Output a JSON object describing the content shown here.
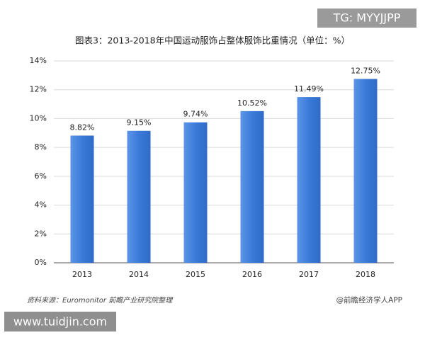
{
  "chart_data": {
    "type": "bar",
    "title": "图表3：2013-2018年中国运动服饰占整体服饰比重情况（单位：%）",
    "categories": [
      "2013",
      "2014",
      "2015",
      "2016",
      "2017",
      "2018"
    ],
    "values": [
      8.82,
      9.15,
      9.74,
      10.52,
      11.49,
      12.75
    ],
    "value_labels": [
      "8.82%",
      "9.15%",
      "9.74%",
      "10.52%",
      "11.49%",
      "12.75%"
    ],
    "color": "#3a7ad8",
    "ylim": [
      0,
      14
    ],
    "yticks": [
      {
        "value": 0,
        "label": "0%"
      },
      {
        "value": 2,
        "label": "2%"
      },
      {
        "value": 4,
        "label": "4%"
      },
      {
        "value": 6,
        "label": "6%"
      },
      {
        "value": 8,
        "label": "8%"
      },
      {
        "value": 10,
        "label": "10%"
      },
      {
        "value": 12,
        "label": "12%"
      },
      {
        "value": 14,
        "label": "14%"
      }
    ],
    "grid": true,
    "source": "资料来源：Euromonitor 前瞻产业研究院整理",
    "credit": "@前瞻经济学人APP"
  },
  "overlays": {
    "tg": "TG: MYYJJPP",
    "site": "www.tuidjin.com"
  }
}
